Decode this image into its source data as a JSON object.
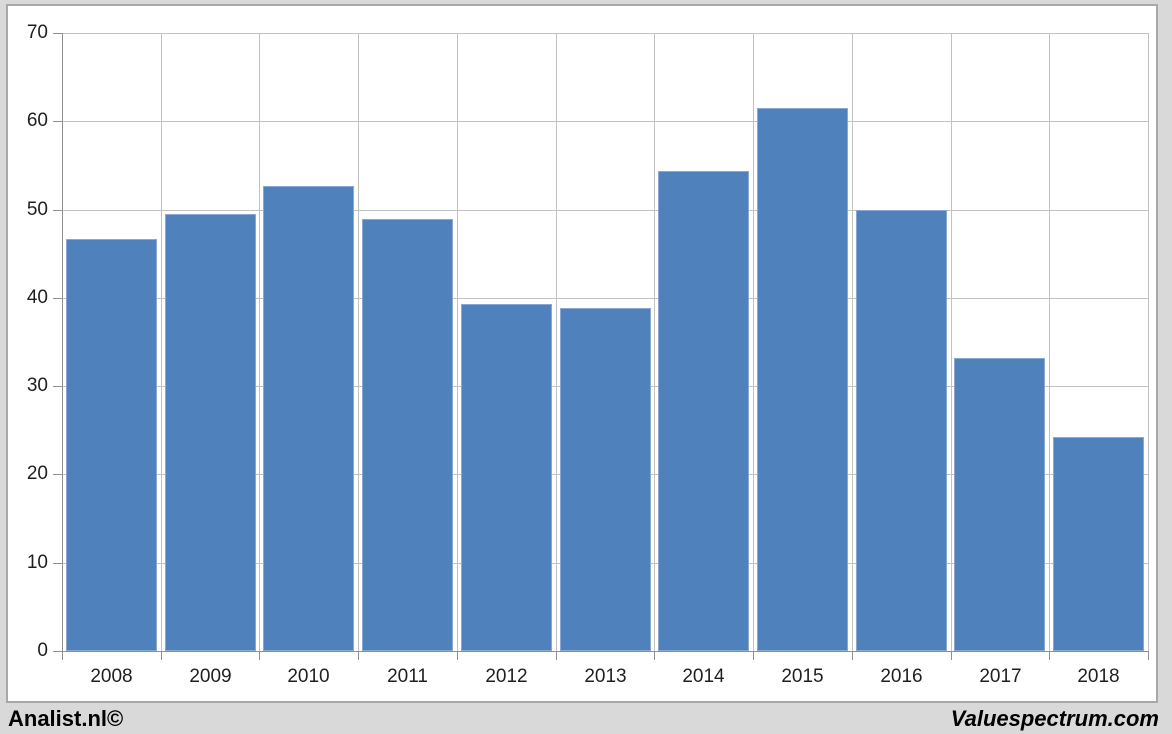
{
  "footer": {
    "left_brand": "Analist.nl©",
    "right_brand": "Valuespectrum.com"
  },
  "chart_data": {
    "type": "bar",
    "title": "",
    "xlabel": "",
    "ylabel": "",
    "categories": [
      "2008",
      "2009",
      "2010",
      "2011",
      "2012",
      "2013",
      "2014",
      "2015",
      "2016",
      "2017",
      "2018"
    ],
    "values": [
      46.7,
      49.5,
      52.7,
      48.9,
      39.3,
      38.9,
      54.4,
      61.5,
      50.0,
      33.2,
      24.2
    ],
    "ylim": [
      0,
      70
    ],
    "yticks": [
      0,
      10,
      20,
      30,
      40,
      50,
      60,
      70
    ],
    "legend": "none",
    "grid": {
      "horizontal": true,
      "vertical_category_boundaries": true
    },
    "colors": {
      "bar": "#4f81bd",
      "bar_border": "#8aa9d2",
      "plot_background": "#ffffff",
      "page_background": "#d9d9d9",
      "gridline": "#c2c2c2",
      "axis": "#8f8f8f",
      "label_text": "#1f1f1f"
    }
  }
}
